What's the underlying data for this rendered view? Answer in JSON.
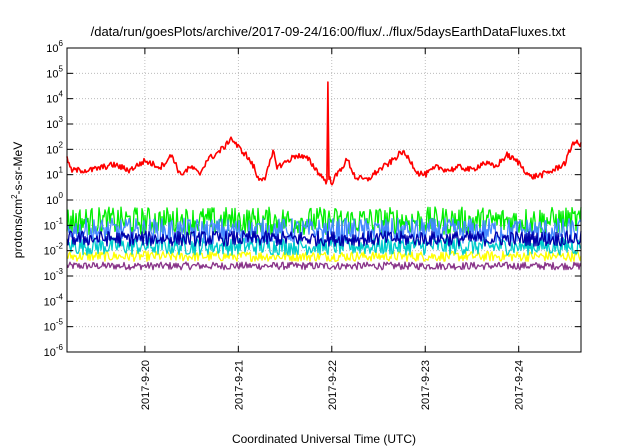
{
  "chart_data": {
    "type": "line",
    "title": "/data/run/goesPlots/archive/2017-09-24/16:00/flux/../flux/5daysEarthDataFluxes.txt",
    "xlabel": "Coordinated Universal Time (UTC)",
    "ylabel_parts": [
      "protons/cm",
      "2",
      "-s-sr-MeV"
    ],
    "yscale": "log",
    "ylim": [
      1e-06,
      1000000.0
    ],
    "xlim": [
      "2017-09-19T04:00",
      "2017-09-24T16:00"
    ],
    "grid": true,
    "legend": "none",
    "y_ticks": [
      {
        "value": 1e-06,
        "base": "10",
        "exp": "-6"
      },
      {
        "value": 1e-05,
        "base": "10",
        "exp": "-5"
      },
      {
        "value": 0.0001,
        "base": "10",
        "exp": "-4"
      },
      {
        "value": 0.001,
        "base": "10",
        "exp": "-3"
      },
      {
        "value": 0.01,
        "base": "10",
        "exp": "-2"
      },
      {
        "value": 0.1,
        "base": "10",
        "exp": "-1"
      },
      {
        "value": 1.0,
        "base": "10",
        "exp": "0"
      },
      {
        "value": 10.0,
        "base": "10",
        "exp": "1"
      },
      {
        "value": 100.0,
        "base": "10",
        "exp": "2"
      },
      {
        "value": 1000.0,
        "base": "10",
        "exp": "3"
      },
      {
        "value": 10000.0,
        "base": "10",
        "exp": "4"
      },
      {
        "value": 100000.0,
        "base": "10",
        "exp": "5"
      },
      {
        "value": 1000000.0,
        "base": "10",
        "exp": "6"
      }
    ],
    "x_ticks": [
      {
        "value": "2017-09-20T00:00",
        "label": "2017-9-20"
      },
      {
        "value": "2017-09-21T00:00",
        "label": "2017-9-21"
      },
      {
        "value": "2017-09-22T00:00",
        "label": "2017-9-22"
      },
      {
        "value": "2017-09-23T00:00",
        "label": "2017-9-23"
      },
      {
        "value": "2017-09-24T00:00",
        "label": "2017-9-24"
      }
    ],
    "series": [
      {
        "color": "#ff0000",
        "noise": 0.12,
        "points": [
          [
            "2017-09-19T04:00",
            50
          ],
          [
            "2017-09-19T05:00",
            15
          ],
          [
            "2017-09-19T10:00",
            15
          ],
          [
            "2017-09-19T16:00",
            25
          ],
          [
            "2017-09-19T20:00",
            15
          ],
          [
            "2017-09-20T00:00",
            35
          ],
          [
            "2017-09-20T04:00",
            20
          ],
          [
            "2017-09-20T07:00",
            60
          ],
          [
            "2017-09-20T09:00",
            10
          ],
          [
            "2017-09-20T12:00",
            20
          ],
          [
            "2017-09-20T14:00",
            10
          ],
          [
            "2017-09-20T16:00",
            40
          ],
          [
            "2017-09-20T18:00",
            60
          ],
          [
            "2017-09-20T21:00",
            150
          ],
          [
            "2017-09-20T22:00",
            300
          ],
          [
            "2017-09-21T00:00",
            120
          ],
          [
            "2017-09-21T02:00",
            60
          ],
          [
            "2017-09-21T04:00",
            20
          ],
          [
            "2017-09-21T05:00",
            7
          ],
          [
            "2017-09-21T07:00",
            8
          ],
          [
            "2017-09-21T09:00",
            80
          ],
          [
            "2017-09-21T10:00",
            20
          ],
          [
            "2017-09-21T12:00",
            30
          ],
          [
            "2017-09-21T15:00",
            60
          ],
          [
            "2017-09-21T18:00",
            40
          ],
          [
            "2017-09-21T21:00",
            10
          ],
          [
            "2017-09-21T22:50",
            5
          ],
          [
            "2017-09-21T23:00",
            45000
          ],
          [
            "2017-09-21T23:10",
            8
          ],
          [
            "2017-09-22T00:00",
            5
          ],
          [
            "2017-09-22T04:00",
            40
          ],
          [
            "2017-09-22T06:00",
            8
          ],
          [
            "2017-09-22T09:00",
            6
          ],
          [
            "2017-09-22T12:00",
            15
          ],
          [
            "2017-09-22T15:00",
            30
          ],
          [
            "2017-09-22T18:00",
            80
          ],
          [
            "2017-09-22T20:00",
            40
          ],
          [
            "2017-09-22T22:00",
            12
          ],
          [
            "2017-09-23T00:00",
            10
          ],
          [
            "2017-09-23T03:00",
            20
          ],
          [
            "2017-09-23T06:00",
            15
          ],
          [
            "2017-09-23T09:00",
            20
          ],
          [
            "2017-09-23T12:00",
            15
          ],
          [
            "2017-09-23T15:00",
            30
          ],
          [
            "2017-09-23T18:00",
            20
          ],
          [
            "2017-09-23T21:00",
            60
          ],
          [
            "2017-09-24T00:00",
            30
          ],
          [
            "2017-09-24T03:00",
            8
          ],
          [
            "2017-09-24T06:00",
            10
          ],
          [
            "2017-09-24T09:00",
            15
          ],
          [
            "2017-09-24T12:00",
            30
          ],
          [
            "2017-09-24T14:00",
            200
          ],
          [
            "2017-09-24T16:00",
            150
          ]
        ]
      },
      {
        "color": "#00ee00",
        "noise": 0.55,
        "points": [
          [
            "2017-09-19T04:00",
            0.15
          ],
          [
            "2017-09-24T16:00",
            0.15
          ]
        ]
      },
      {
        "color": "#4488ff",
        "noise": 0.5,
        "points": [
          [
            "2017-09-19T04:00",
            0.06
          ],
          [
            "2017-09-24T16:00",
            0.06
          ]
        ]
      },
      {
        "color": "#00cccc",
        "noise": 0.35,
        "points": [
          [
            "2017-09-19T04:00",
            0.015
          ],
          [
            "2017-09-24T16:00",
            0.015
          ]
        ]
      },
      {
        "color": "#0000aa",
        "noise": 0.3,
        "points": [
          [
            "2017-09-19T04:00",
            0.03
          ],
          [
            "2017-09-24T16:00",
            0.03
          ]
        ]
      },
      {
        "color": "#ffff00",
        "noise": 0.2,
        "points": [
          [
            "2017-09-19T04:00",
            0.006
          ],
          [
            "2017-09-24T16:00",
            0.006
          ]
        ]
      },
      {
        "color": "#883388",
        "noise": 0.15,
        "points": [
          [
            "2017-09-19T04:00",
            0.0025
          ],
          [
            "2017-09-24T16:00",
            0.0025
          ]
        ]
      }
    ]
  }
}
